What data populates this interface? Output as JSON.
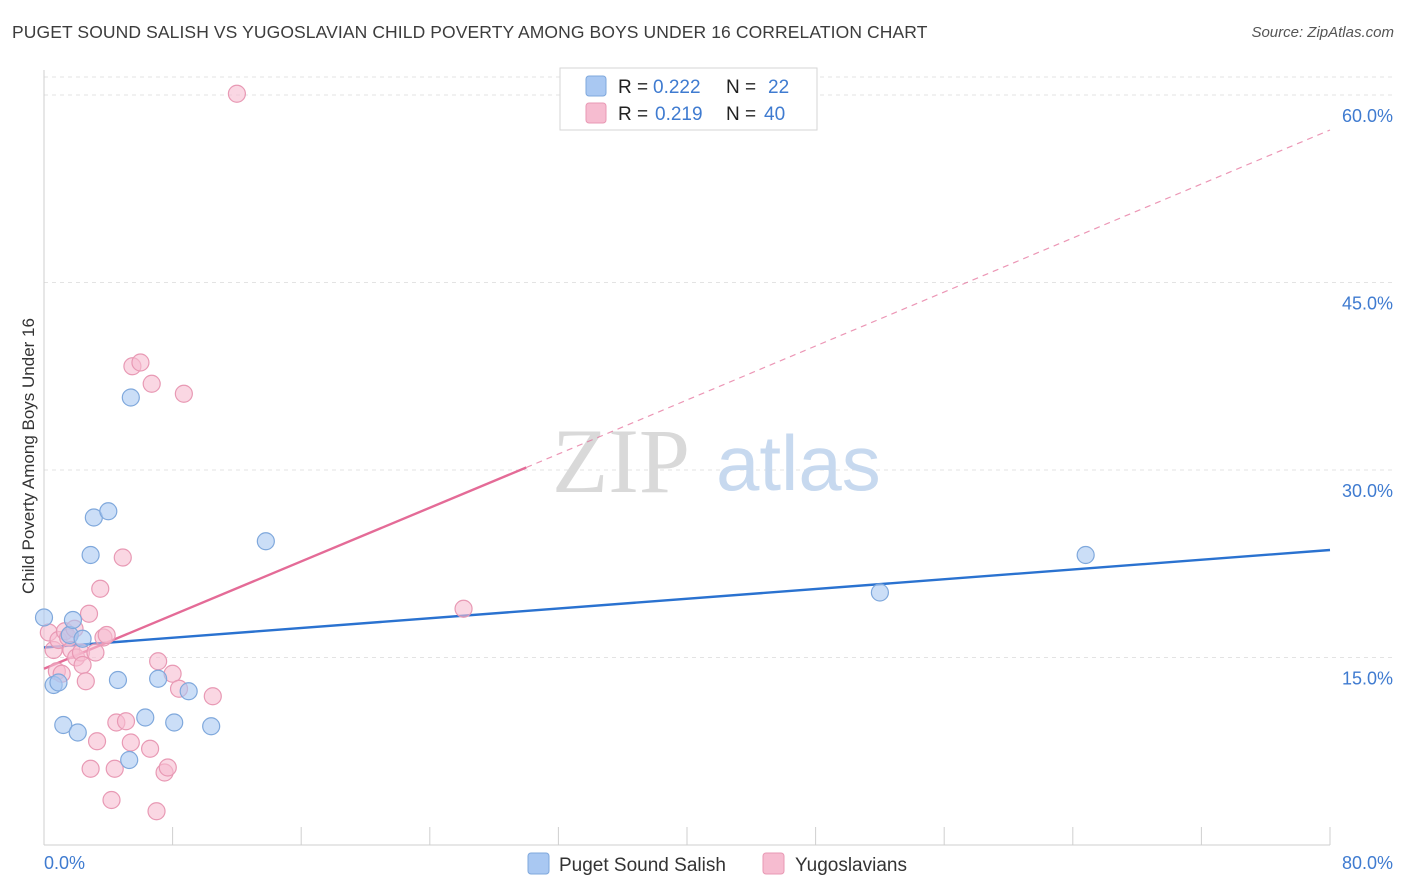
{
  "title": "PUGET SOUND SALISH VS YUGOSLAVIAN CHILD POVERTY AMONG BOYS UNDER 16 CORRELATION CHART",
  "source": "Source: ZipAtlas.com",
  "watermark": {
    "zip": "ZIP",
    "atlas": "atlas"
  },
  "colors": {
    "blue_fill": "#a9c8f2",
    "blue_stroke": "#7fa8dc",
    "blue_line": "#2a72d0",
    "pink_fill": "#f6bcd0",
    "pink_stroke": "#e899b4",
    "pink_line": "#e46b97",
    "tick_text": "#3f7bd0",
    "grid": "#e3e3e3"
  },
  "legend": {
    "rows": [
      {
        "r_label": "R = ",
        "r_value": "0.222",
        "n_label": "N = ",
        "n_value": "22",
        "series": "blue"
      },
      {
        "r_label": "R = ",
        "r_value": "0.219",
        "n_label": "N = ",
        "n_value": "40",
        "series": "pink"
      }
    ]
  },
  "chart_data": {
    "type": "scatter",
    "title": "PUGET SOUND SALISH VS YUGOSLAVIAN CHILD POVERTY AMONG BOYS UNDER 16 CORRELATION CHART",
    "xlabel": "",
    "ylabel": "Child Poverty Among Boys Under 16",
    "xlim": [
      0,
      80
    ],
    "ylim": [
      0,
      62
    ],
    "x_tick_labels": [
      "0.0%",
      "80.0%"
    ],
    "y_ticks": [
      15,
      30,
      45,
      60
    ],
    "y_tick_labels": [
      "15.0%",
      "30.0%",
      "45.0%",
      "60.0%"
    ],
    "legend_position": "top-center",
    "series": [
      {
        "name": "Puget Sound Salish",
        "color": "blue",
        "points": [
          {
            "x": 0.0,
            "y": 18.2
          },
          {
            "x": 0.6,
            "y": 12.8
          },
          {
            "x": 0.9,
            "y": 13.0
          },
          {
            "x": 1.2,
            "y": 9.6
          },
          {
            "x": 1.6,
            "y": 16.8
          },
          {
            "x": 1.8,
            "y": 18.0
          },
          {
            "x": 2.1,
            "y": 9.0
          },
          {
            "x": 2.4,
            "y": 16.5
          },
          {
            "x": 2.9,
            "y": 23.2
          },
          {
            "x": 3.1,
            "y": 26.2
          },
          {
            "x": 4.0,
            "y": 26.7
          },
          {
            "x": 4.6,
            "y": 13.2
          },
          {
            "x": 5.3,
            "y": 6.8
          },
          {
            "x": 5.4,
            "y": 35.8
          },
          {
            "x": 6.3,
            "y": 10.2
          },
          {
            "x": 7.1,
            "y": 13.3
          },
          {
            "x": 8.1,
            "y": 9.8
          },
          {
            "x": 9.0,
            "y": 12.3
          },
          {
            "x": 10.4,
            "y": 9.5
          },
          {
            "x": 13.8,
            "y": 24.3
          },
          {
            "x": 52.0,
            "y": 20.2
          },
          {
            "x": 64.8,
            "y": 23.2
          }
        ],
        "trend": {
          "x0": 0,
          "y0": 15.8,
          "x1": 80,
          "y1": 23.6
        }
      },
      {
        "name": "Yugoslavians",
        "color": "pink",
        "points": [
          {
            "x": 0.3,
            "y": 17.0
          },
          {
            "x": 0.6,
            "y": 15.6
          },
          {
            "x": 0.8,
            "y": 13.9
          },
          {
            "x": 0.9,
            "y": 16.4
          },
          {
            "x": 1.1,
            "y": 13.7
          },
          {
            "x": 1.3,
            "y": 17.1
          },
          {
            "x": 1.5,
            "y": 16.6
          },
          {
            "x": 1.7,
            "y": 15.6
          },
          {
            "x": 1.9,
            "y": 17.3
          },
          {
            "x": 2.0,
            "y": 15.0
          },
          {
            "x": 2.3,
            "y": 15.4
          },
          {
            "x": 2.4,
            "y": 14.4
          },
          {
            "x": 2.6,
            "y": 13.1
          },
          {
            "x": 2.8,
            "y": 18.5
          },
          {
            "x": 2.9,
            "y": 6.1
          },
          {
            "x": 3.2,
            "y": 15.4
          },
          {
            "x": 3.3,
            "y": 8.3
          },
          {
            "x": 3.5,
            "y": 20.5
          },
          {
            "x": 3.7,
            "y": 16.6
          },
          {
            "x": 3.9,
            "y": 16.8
          },
          {
            "x": 4.2,
            "y": 3.6
          },
          {
            "x": 4.4,
            "y": 6.1
          },
          {
            "x": 4.5,
            "y": 9.8
          },
          {
            "x": 4.9,
            "y": 23.0
          },
          {
            "x": 5.1,
            "y": 9.9
          },
          {
            "x": 5.4,
            "y": 8.2
          },
          {
            "x": 5.5,
            "y": 38.3
          },
          {
            "x": 6.0,
            "y": 38.6
          },
          {
            "x": 6.6,
            "y": 7.7
          },
          {
            "x": 6.7,
            "y": 36.9
          },
          {
            "x": 7.1,
            "y": 14.7
          },
          {
            "x": 7.0,
            "y": 2.7
          },
          {
            "x": 7.5,
            "y": 5.8
          },
          {
            "x": 7.7,
            "y": 6.2
          },
          {
            "x": 8.0,
            "y": 13.7
          },
          {
            "x": 8.4,
            "y": 12.5
          },
          {
            "x": 8.7,
            "y": 36.1
          },
          {
            "x": 10.5,
            "y": 11.9
          },
          {
            "x": 12.0,
            "y": 60.1
          },
          {
            "x": 26.1,
            "y": 18.9
          }
        ],
        "trend_solid": {
          "x0": 0,
          "y0": 14.1,
          "x1": 30,
          "y1": 30.2
        },
        "trend_dashed": {
          "x0": 30,
          "y0": 30.2,
          "x1": 80,
          "y1": 57.2
        }
      }
    ]
  },
  "bottom_legend": [
    {
      "label": "Puget Sound Salish",
      "series": "blue"
    },
    {
      "label": "Yugoslavians",
      "series": "pink"
    }
  ]
}
